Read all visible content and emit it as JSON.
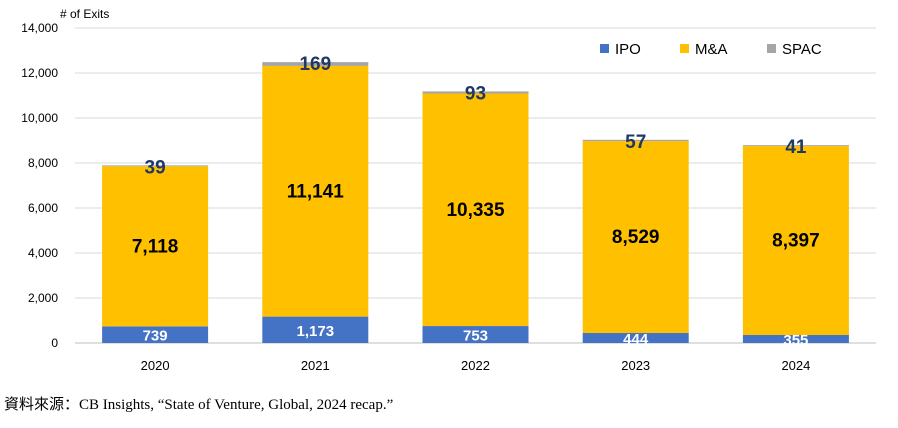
{
  "chart_data": {
    "type": "bar",
    "stacked": true,
    "ylabel": "# of Exits",
    "xlabel": "",
    "ylim": [
      0,
      14000
    ],
    "yticks": [
      0,
      2000,
      4000,
      6000,
      8000,
      10000,
      12000,
      14000
    ],
    "ytick_labels": [
      "0",
      "2,000",
      "4,000",
      "6,000",
      "8,000",
      "10,000",
      "12,000",
      "14,000"
    ],
    "grid": true,
    "legend_position": "top-right",
    "categories": [
      "2020",
      "2021",
      "2022",
      "2023",
      "2024"
    ],
    "series": [
      {
        "name": "IPO",
        "color": "#4472C4",
        "values": [
          739,
          1173,
          753,
          444,
          355
        ],
        "labels": [
          "739",
          "1,173",
          "753",
          "444",
          "355"
        ],
        "label_color": "#ffffff"
      },
      {
        "name": "M&A",
        "color": "#FFC000",
        "values": [
          7118,
          11141,
          10335,
          8529,
          8397
        ],
        "labels": [
          "7,118",
          "11,141",
          "10,335",
          "8,529",
          "8,397"
        ],
        "label_color": "#000000"
      },
      {
        "name": "SPAC",
        "color": "#A5A5A5",
        "values": [
          39,
          169,
          93,
          57,
          41
        ],
        "labels": [
          "39",
          "169",
          "93",
          "57",
          "41"
        ],
        "label_color": "#1F3864"
      }
    ]
  },
  "source_note": "資料來源：CB Insights, “State of Venture, Global, 2024 recap.”"
}
